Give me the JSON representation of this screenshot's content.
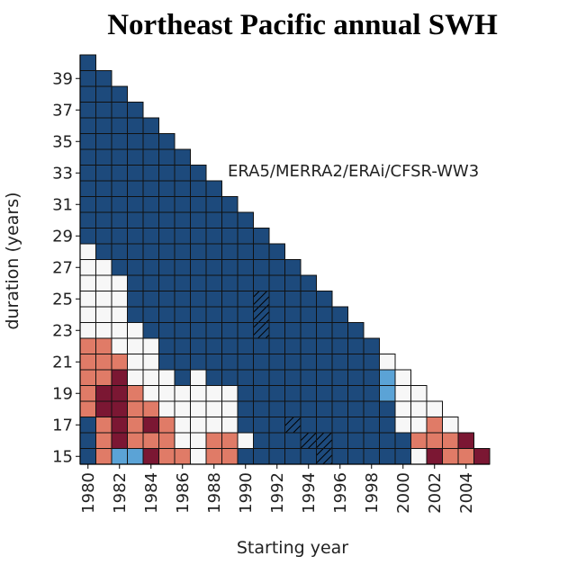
{
  "chart_data": {
    "type": "heatmap",
    "title": "Northeast Pacific annual SWH",
    "annotation": "ERA5/MERRA2/ERAi/CFSR-WW3",
    "xlabel": "Starting year",
    "ylabel": "duration (years)",
    "x": [
      1980,
      1981,
      1982,
      1983,
      1984,
      1985,
      1986,
      1987,
      1988,
      1989,
      1990,
      1991,
      1992,
      1993,
      1994,
      1995,
      1996,
      1997,
      1998,
      1999,
      2000,
      2001,
      2002,
      2003,
      2004,
      2005
    ],
    "y": [
      15,
      16,
      17,
      18,
      19,
      20,
      21,
      22,
      23,
      24,
      25,
      26,
      27,
      28,
      29,
      30,
      31,
      32,
      33,
      34,
      35,
      36,
      37,
      38,
      39,
      40
    ],
    "columns": [
      "BBBSSSSSWWWWWWBBBBBBBBBBBB",
      "SSSRRSSSWWWWWBBBBBBBBBBBB",
      "LRRRRRSWWWWWBBBBBBBBBBBB",
      "LSSSSWWWWBBBBBBBBBBBBBB",
      "RSRSWWWWBBBBBBBBBBBBBB",
      "SSSWWWBBBBBBBBBBBBBBB",
      "SWWWWBBBBBBBBBBBBBBB",
      "WWWWWWBBBBBBBBBBBBB",
      "SSWWWBBBBBBBBBBBBB",
      "SSWWWBBBBBBBBBBBB",
      "BWBBBBBBBBBBBBBB",
      "BBBBBBBBHHHBBBB",
      "BBBBBBBBBBBBBB",
      "BBHBBBBBBBBBB",
      "BHBBBBBBBBBB",
      "HHBBBBBBBBB",
      "BBBBBBBBBB",
      "BBBBBBBBB",
      "BBBBBBBB",
      "BBBBLLW",
      "BBWWWW",
      "WSWWW",
      "RSSW",
      "SSW",
      "SR",
      "R"
    ],
    "palette": {
      "B": "#1d4a7c",
      "L": "#5ba3d6",
      "W": "#f7f7f7",
      "S": "#e07b67",
      "R": "#7b1733",
      "H": "#1d4a7c"
    },
    "hatched": "H",
    "xlim": [
      1979.5,
      2005.5
    ],
    "ylim": [
      14.5,
      40.5
    ],
    "xticks": [
      1980,
      1982,
      1984,
      1986,
      1988,
      1990,
      1992,
      1994,
      1996,
      1998,
      2000,
      2002,
      2004
    ],
    "yticks": [
      15,
      17,
      19,
      21,
      23,
      25,
      27,
      29,
      31,
      33,
      35,
      37,
      39
    ]
  }
}
